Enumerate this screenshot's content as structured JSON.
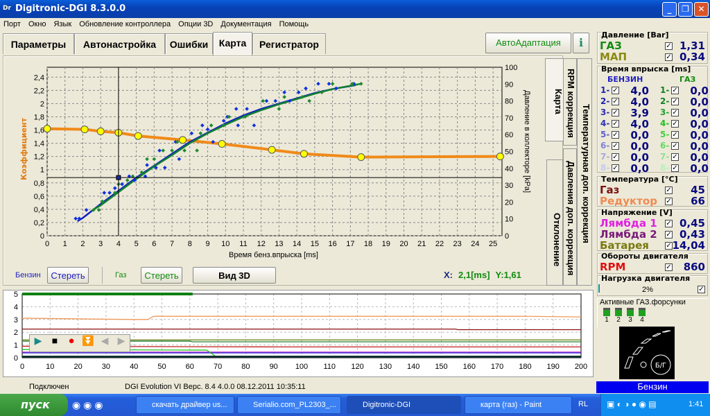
{
  "window": {
    "title": "Digitronic-DGI  8.3.0.0",
    "logo": "Dr",
    "min": "_",
    "max": "❐",
    "close": "✕"
  },
  "menu": [
    "Порт",
    "Окно",
    "Язык",
    "Обновление контроллера",
    "Опции 3D",
    "Документация",
    "Помощь"
  ],
  "tabs": [
    "Параметры",
    "Автонастройка",
    "Ошибки",
    "Карта",
    "Регистратор"
  ],
  "active_tab": "Карта",
  "autoadapt": "АвтоАдаптация",
  "info_icon": "info-icon",
  "side_tabs": {
    "karta": "Карта",
    "rpm": "RPM коррекция",
    "temp": "Температурная доп. коррекция",
    "otkl": "Отклонение",
    "press": "Давления доп. коррекция"
  },
  "controls": {
    "benzin": "Бензин",
    "erase1": "Стереть",
    "gaz": "Газ",
    "erase2": "Стереть",
    "view3d": "Вид 3D",
    "x_label": "X:",
    "x_val": "2,1[ms]",
    "y_label": "Y:1,61"
  },
  "chart_data": [
    {
      "type": "scatter",
      "title": "",
      "xlabel": "Время бенз.впрыска [ms]",
      "ylabel": "Коэффициент",
      "y2label": "Давление в коллекторе [kPa]",
      "xlim": [
        0,
        25.5
      ],
      "ylim": [
        0,
        2.55
      ],
      "y2lim": [
        0,
        100
      ],
      "grid": true,
      "xticks": [
        0,
        1,
        2,
        3,
        4,
        5,
        6,
        7,
        8,
        9,
        10,
        11,
        12,
        13,
        14,
        15,
        16,
        17,
        18,
        19,
        20,
        21,
        22,
        23,
        24,
        25
      ],
      "yticks": [
        "0",
        "0,2",
        "0,4",
        "0,6",
        "0,8",
        "1",
        "1,2",
        "1,4",
        "1,6",
        "1,8",
        "2",
        "2,2",
        "2,4"
      ],
      "y2ticks": [
        0,
        10,
        20,
        30,
        40,
        50,
        60,
        70,
        80,
        90,
        100
      ],
      "crosshair": {
        "x": 4,
        "y": 0.88
      },
      "series": [
        {
          "name": "coefficient",
          "color": "#f08a18",
          "marker_color": "#ffff00",
          "points": [
            [
              0,
              1.62
            ],
            [
              2.1,
              1.61
            ],
            [
              3,
              1.58
            ],
            [
              4,
              1.56
            ],
            [
              5.1,
              1.51
            ],
            [
              7.6,
              1.45
            ],
            [
              9.8,
              1.39
            ],
            [
              12.6,
              1.3
            ],
            [
              14.4,
              1.24
            ],
            [
              17.6,
              1.19
            ],
            [
              25.4,
              1.2
            ]
          ]
        },
        {
          "name": "Бензин fit",
          "color": "#1020c0",
          "points": [
            [
              1.7,
              0.22
            ],
            [
              2,
              0.27
            ],
            [
              3,
              0.48
            ],
            [
              4,
              0.68
            ],
            [
              5,
              0.88
            ],
            [
              6,
              1.06
            ],
            [
              7,
              1.24
            ],
            [
              8,
              1.42
            ],
            [
              9,
              1.56
            ],
            [
              10,
              1.7
            ],
            [
              11,
              1.82
            ],
            [
              12,
              1.92
            ],
            [
              13,
              2.0
            ],
            [
              14,
              2.08
            ],
            [
              15,
              2.16
            ],
            [
              16,
              2.22
            ],
            [
              17.3,
              2.28
            ]
          ]
        },
        {
          "name": "Газ fit",
          "color": "#108030",
          "points": [
            [
              2.5,
              0.38
            ],
            [
              3,
              0.46
            ],
            [
              4,
              0.66
            ],
            [
              5,
              0.86
            ],
            [
              6,
              1.05
            ],
            [
              7,
              1.22
            ],
            [
              8,
              1.4
            ],
            [
              9,
              1.55
            ],
            [
              10,
              1.68
            ],
            [
              11,
              1.8
            ],
            [
              12,
              1.9
            ],
            [
              13,
              1.99
            ],
            [
              14,
              2.07
            ],
            [
              15,
              2.15
            ],
            [
              16,
              2.22
            ],
            [
              17.6,
              2.3
            ]
          ]
        },
        {
          "name": "Бензин points",
          "color": "#1030e0",
          "scatter": true,
          "points": [
            [
              1.6,
              0.26
            ],
            [
              1.8,
              0.26
            ],
            [
              2.2,
              0.39
            ],
            [
              3.2,
              0.65
            ],
            [
              3.5,
              0.65
            ],
            [
              3.8,
              0.72
            ],
            [
              4.2,
              0.78
            ],
            [
              4.6,
              0.9
            ],
            [
              4.9,
              0.84
            ],
            [
              5.5,
              0.9
            ],
            [
              5.6,
              1.07
            ],
            [
              6.1,
              1.03
            ],
            [
              6.3,
              1.29
            ],
            [
              6.6,
              1.03
            ],
            [
              7.2,
              1.42
            ],
            [
              7.4,
              1.16
            ],
            [
              8.1,
              1.55
            ],
            [
              8.7,
              1.67
            ],
            [
              9,
              1.61
            ],
            [
              9.3,
              1.42
            ],
            [
              9.9,
              1.74
            ],
            [
              10.1,
              1.8
            ],
            [
              10.6,
              1.92
            ],
            [
              10.7,
              1.67
            ],
            [
              11.2,
              1.92
            ],
            [
              11.6,
              1.67
            ],
            [
              12.3,
              2.04
            ],
            [
              12.8,
              2.04
            ],
            [
              13.3,
              2.17
            ],
            [
              13.6,
              2.04
            ],
            [
              14.1,
              2.17
            ],
            [
              14.5,
              2.23
            ],
            [
              15.2,
              2.3
            ],
            [
              15.8,
              2.3
            ],
            [
              16.2,
              2.23
            ],
            [
              17.2,
              2.3
            ]
          ]
        },
        {
          "name": "Газ points",
          "color": "#208a30",
          "scatter": true,
          "points": [
            [
              2.6,
              0.39
            ],
            [
              2.9,
              0.39
            ],
            [
              3.1,
              0.52
            ],
            [
              3.8,
              0.65
            ],
            [
              4,
              0.78
            ],
            [
              4.5,
              0.84
            ],
            [
              4.8,
              0.9
            ],
            [
              5.3,
              0.96
            ],
            [
              5.6,
              1.16
            ],
            [
              6,
              1.16
            ],
            [
              6.5,
              1.29
            ],
            [
              7,
              1.29
            ],
            [
              7.3,
              1.42
            ],
            [
              7.7,
              1.29
            ],
            [
              8.4,
              1.29
            ],
            [
              8.6,
              1.55
            ],
            [
              9.2,
              1.67
            ],
            [
              9.9,
              1.67
            ],
            [
              10.2,
              1.8
            ],
            [
              11.1,
              1.8
            ],
            [
              12.1,
              2.04
            ],
            [
              13,
              1.92
            ],
            [
              13.3,
              2.1
            ],
            [
              14.3,
              2.1
            ],
            [
              14.7,
              2.04
            ],
            [
              15.4,
              2.17
            ],
            [
              16,
              2.3
            ],
            [
              17.1,
              2.3
            ],
            [
              17.6,
              2.3
            ]
          ]
        }
      ]
    },
    {
      "type": "line",
      "xlim": [
        0,
        200
      ],
      "ylim": [
        0,
        5
      ],
      "grid": true,
      "xticks": [
        0,
        10,
        20,
        30,
        40,
        50,
        60,
        70,
        80,
        90,
        100,
        110,
        120,
        130,
        140,
        150,
        160,
        170,
        180,
        190,
        200
      ],
      "yticks": [
        0,
        1,
        2,
        3,
        4,
        5
      ],
      "progress_to_x": 61,
      "series": [
        {
          "name": "orange",
          "color": "#f09a5a",
          "points": [
            [
              0,
              3.1
            ],
            [
              40,
              3.0
            ],
            [
              45,
              3.0
            ],
            [
              47,
              3.25
            ],
            [
              180,
              3.25
            ],
            [
              200,
              3.2
            ]
          ]
        },
        {
          "name": "darkred",
          "color": "#8a1010",
          "points": [
            [
              0,
              2.25
            ],
            [
              155,
              2.25
            ],
            [
              156,
              2.2
            ],
            [
              200,
              2.2
            ]
          ]
        },
        {
          "name": "olive",
          "color": "#6a7a10",
          "points": [
            [
              0,
              1.4
            ],
            [
              200,
              1.4
            ]
          ]
        },
        {
          "name": "green",
          "color": "#208030",
          "points": [
            [
              0,
              1.3
            ],
            [
              60,
              1.3
            ],
            [
              61,
              1.25
            ],
            [
              200,
              1.25
            ]
          ]
        },
        {
          "name": "red",
          "color": "#c02020",
          "points": [
            [
              0,
              0.9
            ],
            [
              94,
              0.85
            ],
            [
              200,
              0.85
            ]
          ]
        },
        {
          "name": "magenta",
          "color": "#c030c0",
          "points": [
            [
              0,
              0.45
            ],
            [
              200,
              0.45
            ]
          ]
        },
        {
          "name": "blue",
          "color": "#2020e0",
          "points": [
            [
              0,
              0.38
            ],
            [
              200,
              0.38
            ]
          ]
        },
        {
          "name": "lime",
          "color": "#20c020",
          "points": [
            [
              0,
              0.65
            ],
            [
              60,
              0.6
            ],
            [
              66,
              0.6
            ],
            [
              70,
              0.0
            ]
          ]
        },
        {
          "name": "base",
          "color": "#103030",
          "points": [
            [
              0,
              0.08
            ],
            [
              200,
              0.08
            ]
          ]
        }
      ]
    }
  ],
  "player": {
    "play": "play-icon",
    "stop": "stop-icon",
    "record": "record-icon",
    "down": "down-icon",
    "prev": "prev-icon",
    "next": "next-icon"
  },
  "pressure": {
    "title": "Давление [Bar]",
    "gas_label": "ГАЗ",
    "gas": "1,31",
    "map_label": "МАП",
    "map": "0,34"
  },
  "injection": {
    "title": "Время впрыска [ms]",
    "benzin": "БЕНЗИН",
    "gaz": "ГАЗ",
    "petrol": [
      {
        "n": "1-",
        "v": "4,0",
        "c": "#2020b0"
      },
      {
        "n": "2-",
        "v": "4,0",
        "c": "#2020b0"
      },
      {
        "n": "3-",
        "v": "3,9",
        "c": "#3030b8"
      },
      {
        "n": "4-",
        "v": "4,0",
        "c": "#3030b8"
      },
      {
        "n": "5-",
        "v": "0,0",
        "c": "#6060d0"
      },
      {
        "n": "6-",
        "v": "0,0",
        "c": "#8080d8"
      },
      {
        "n": "7-",
        "v": "0,0",
        "c": "#a8a8e0"
      },
      {
        "n": "8-",
        "v": "0,0",
        "c": "#c8c8f0"
      }
    ],
    "gas": [
      {
        "n": "1-",
        "v": "0,0",
        "c": "#108020"
      },
      {
        "n": "2-",
        "v": "0,0",
        "c": "#108020"
      },
      {
        "n": "3-",
        "v": "0,0",
        "c": "#20a030"
      },
      {
        "n": "4-",
        "v": "0,0",
        "c": "#20c020"
      },
      {
        "n": "5-",
        "v": "0,0",
        "c": "#40d040"
      },
      {
        "n": "6-",
        "v": "0,0",
        "c": "#60d860"
      },
      {
        "n": "7-",
        "v": "0,0",
        "c": "#90e090"
      },
      {
        "n": "8-",
        "v": "0,0",
        "c": "#b8f0b8"
      }
    ]
  },
  "temperature": {
    "title": "Температура  [°C]",
    "gas_label": "Газ",
    "gas": "45",
    "red_label": "Редуктор",
    "red": "66"
  },
  "voltage": {
    "title": "Напряжение [V]",
    "l1_label": "Лямбда 1",
    "l1": "0,45",
    "l2_label": "Лямбда 2",
    "l2": "0,43",
    "bat_label": "Батарея",
    "bat": "14,04"
  },
  "rpm": {
    "title": "Обороты двигателя",
    "label": "RPM",
    "value": "860"
  },
  "load": {
    "title": "Нагрузка двигателя",
    "value": "2%",
    "percent": 2
  },
  "injectors": {
    "title": "Активные ГАЗ.форсунки",
    "labels": [
      "1",
      "2",
      "3",
      "4"
    ]
  },
  "switch": {
    "label": "Б/Г"
  },
  "fuel_mode": "Бензин",
  "status": {
    "conn": "Подключен",
    "info": "DGI Evolution VI  Верс. 8.4  4.0.0    08.12.2011 10:35:11"
  },
  "taskbar": {
    "start": "пуск",
    "tasks": [
      "скачать драйвер us...",
      "Serialio.com_PL2303_...",
      "Digitronic-DGI",
      "карта (газ) - Paint"
    ],
    "lang": "RL",
    "clock": "1:41"
  }
}
